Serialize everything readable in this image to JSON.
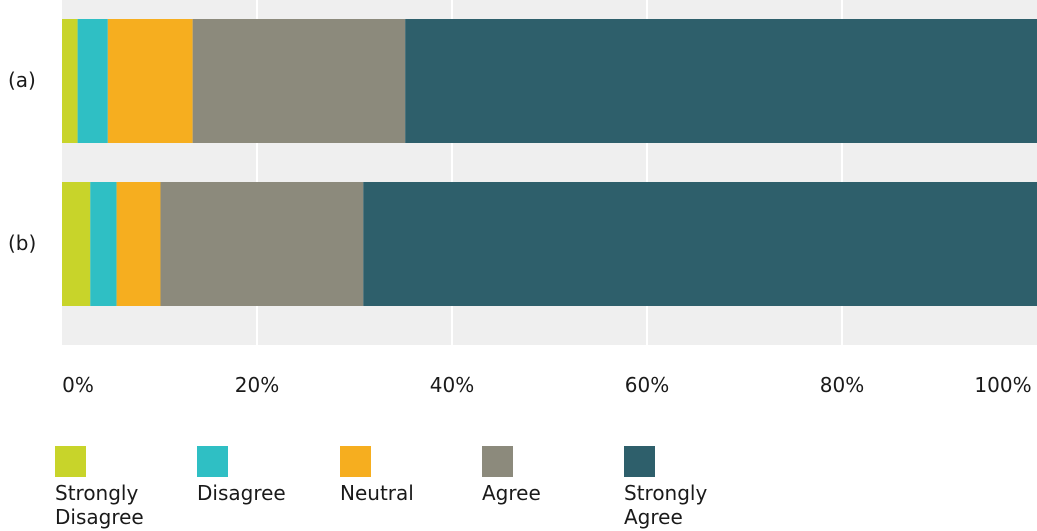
{
  "chart_data": {
    "type": "bar",
    "orientation": "horizontal",
    "stacked": true,
    "categories": [
      "(a)",
      "(b)"
    ],
    "series": [
      {
        "name": "Strongly\nDisagree",
        "color": "#c8d42a",
        "values": [
          1.6,
          2.9
        ]
      },
      {
        "name": "Disagree",
        "color": "#2fbfc4",
        "values": [
          3.1,
          2.7
        ]
      },
      {
        "name": "Neutral",
        "color": "#f6ae1f",
        "values": [
          8.7,
          4.5
        ]
      },
      {
        "name": "Agree",
        "color": "#8c8a7c",
        "values": [
          21.8,
          20.8
        ]
      },
      {
        "name": "Strongly\nAgree",
        "color": "#2e5f6b",
        "values": [
          64.8,
          69.1
        ]
      }
    ],
    "xlim": [
      0,
      100
    ],
    "xticks": [
      "0%",
      "20%",
      "40%",
      "60%",
      "80%",
      "100%"
    ],
    "grid": true,
    "legend_position": "bottom"
  }
}
